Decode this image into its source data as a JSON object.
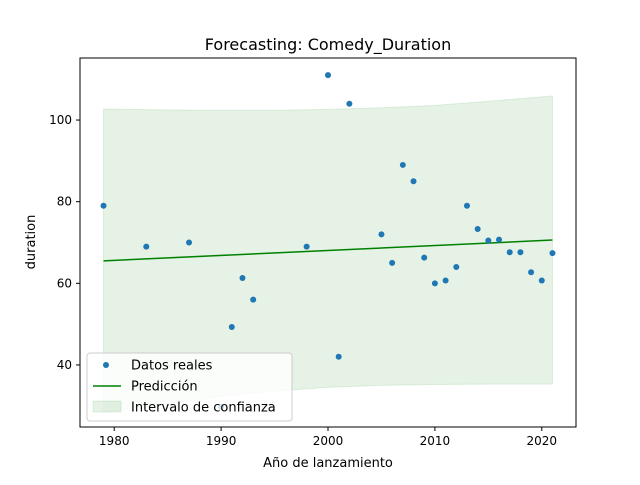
{
  "chart_data": {
    "type": "scatter",
    "title": "Forecasting: Comedy_Duration",
    "xlabel": "Año de lanzamiento",
    "ylabel": "duration",
    "xlim": [
      1976.8,
      2023.2
    ],
    "ylim": [
      24.8,
      115.2
    ],
    "xticks": [
      1980,
      1990,
      2000,
      2010,
      2020
    ],
    "yticks": [
      40,
      60,
      80,
      100
    ],
    "grid": false,
    "legend_position": "lower-left",
    "series": [
      {
        "name": "Datos reales",
        "kind": "scatter",
        "color": "#1f77b4",
        "points": [
          [
            1979,
            79
          ],
          [
            1983,
            69
          ],
          [
            1987,
            70
          ],
          [
            1990,
            29.7
          ],
          [
            1991,
            49.3
          ],
          [
            1992,
            61.3
          ],
          [
            1993,
            56
          ],
          [
            1998,
            69
          ],
          [
            2000,
            111
          ],
          [
            2001,
            42
          ],
          [
            2002,
            104
          ],
          [
            2005,
            72
          ],
          [
            2006,
            65
          ],
          [
            2007,
            89
          ],
          [
            2008,
            85
          ],
          [
            2009,
            66.3
          ],
          [
            2010,
            60
          ],
          [
            2011,
            60.7
          ],
          [
            2012,
            64
          ],
          [
            2013,
            79
          ],
          [
            2014,
            73.3
          ],
          [
            2015,
            70.5
          ],
          [
            2016,
            70.7
          ],
          [
            2017,
            67.6
          ],
          [
            2018,
            67.6
          ],
          [
            2019,
            62.7
          ],
          [
            2020,
            60.7
          ],
          [
            2021,
            67.4
          ]
        ]
      },
      {
        "name": "Predicción",
        "kind": "line",
        "color": "#008000",
        "points": [
          [
            1979,
            65.5
          ],
          [
            2021,
            70.6
          ]
        ]
      },
      {
        "name": "Intervalo de confianza",
        "kind": "band",
        "color": "#008000",
        "x": [
          1979,
          1985,
          1990,
          1995,
          2000,
          2005,
          2010,
          2015,
          2021
        ],
        "upper": [
          102.7,
          102.5,
          102.4,
          102.4,
          102.6,
          103.0,
          103.6,
          104.6,
          105.9
        ],
        "lower": [
          28.4,
          30.5,
          32.3,
          33.6,
          34.5,
          35.0,
          35.2,
          35.3,
          35.3
        ]
      }
    ]
  }
}
